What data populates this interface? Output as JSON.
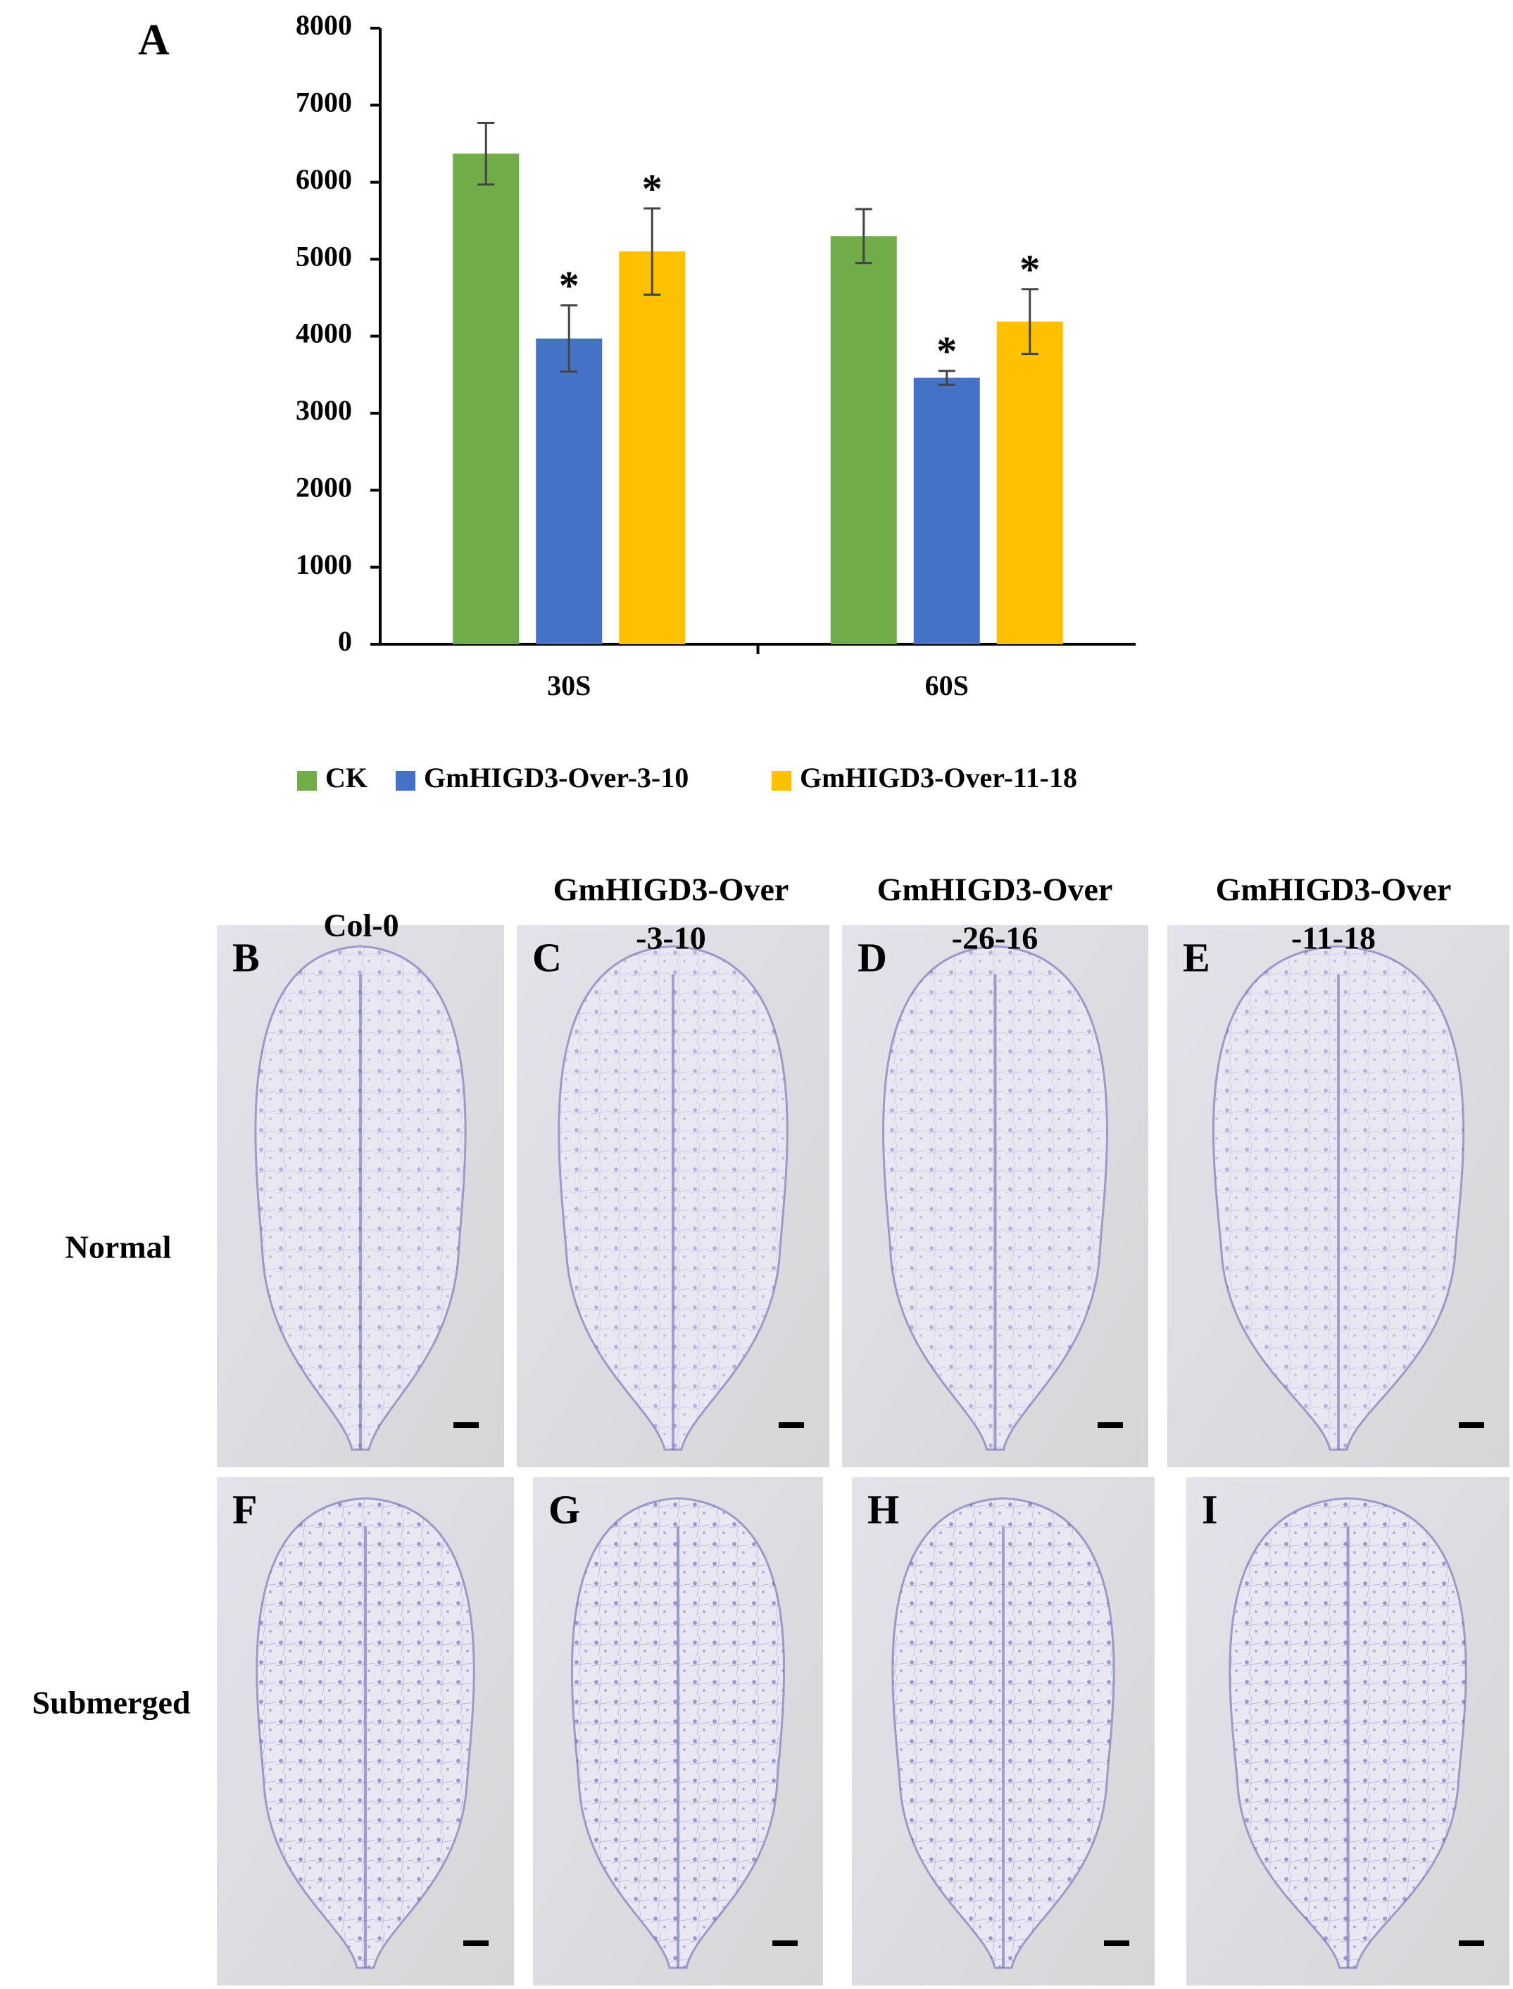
{
  "chart_data": {
    "type": "bar",
    "panel_label": "A",
    "categories": [
      "30S",
      "60S"
    ],
    "series": [
      {
        "name": "CK",
        "color": "#70ad47",
        "values": [
          6370,
          5300
        ],
        "errors": [
          400,
          350
        ]
      },
      {
        "name": "GmHIGD3-Over-3-10",
        "color": "#4472c4",
        "values": [
          3970,
          3460
        ],
        "errors": [
          430,
          90
        ],
        "significance": [
          "*",
          "*"
        ]
      },
      {
        "name": "GmHIGD3-Over-11-18",
        "color": "#ffc000",
        "values": [
          5100,
          4190
        ],
        "errors": [
          560,
          420
        ],
        "significance": [
          "*",
          "*"
        ]
      }
    ],
    "ylim": [
      0,
      8000
    ],
    "yticks": [
      0,
      1000,
      2000,
      3000,
      4000,
      5000,
      6000,
      7000,
      8000
    ],
    "grid": false,
    "legend": "bottom"
  },
  "figure": {
    "column_headers": [
      [
        "Col-0"
      ],
      [
        "GmHIGD3-Over",
        "-3-10"
      ],
      [
        "GmHIGD3-Over",
        "-26-16"
      ],
      [
        "GmHIGD3-Over",
        "-11-18"
      ]
    ],
    "row_labels": [
      "Normal",
      "Submerged"
    ],
    "panels": [
      [
        "B",
        "C",
        "D",
        "E"
      ],
      [
        "F",
        "G",
        "H",
        "I"
      ]
    ]
  }
}
